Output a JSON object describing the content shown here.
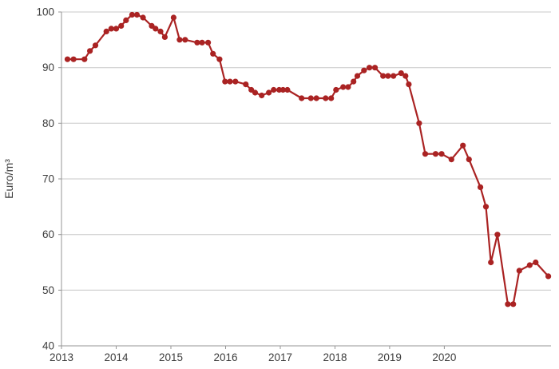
{
  "chart_data": {
    "type": "line",
    "title": "",
    "xlabel": "",
    "ylabel": "Euro/m³",
    "x_ticks": [
      2013,
      2014,
      2015,
      2016,
      2017,
      2018,
      2019,
      2020
    ],
    "x_tick_labels": [
      "2013",
      "2014",
      "2015",
      "2016",
      "2017",
      "2018",
      "2019",
      "2020"
    ],
    "y_ticks": [
      40,
      50,
      60,
      70,
      80,
      90,
      100
    ],
    "y_tick_labels": [
      "40",
      "50",
      "60",
      "70",
      "80",
      "90",
      "100"
    ],
    "xlim": [
      2013,
      2021.95
    ],
    "ylim": [
      40,
      100
    ],
    "grid": "horizontal",
    "legend": "none",
    "marker": "circle",
    "colors": {
      "line": "#aa2323",
      "marker": "#aa2323",
      "grid": "#c8c8c8",
      "axis": "#969696",
      "text": "#3d3d3d",
      "background": "#ffffff"
    },
    "series": [
      {
        "name": "Euro/m³",
        "x": [
          2013.11,
          2013.22,
          2013.42,
          2013.52,
          2013.62,
          2013.82,
          2013.91,
          2014.0,
          2014.09,
          2014.18,
          2014.29,
          2014.38,
          2014.49,
          2014.65,
          2014.72,
          2014.81,
          2014.89,
          2015.05,
          2015.16,
          2015.26,
          2015.48,
          2015.57,
          2015.68,
          2015.77,
          2015.89,
          2015.99,
          2016.08,
          2016.18,
          2016.37,
          2016.47,
          2016.54,
          2016.66,
          2016.79,
          2016.88,
          2016.98,
          2017.05,
          2017.13,
          2017.39,
          2017.56,
          2017.66,
          2017.83,
          2017.93,
          2018.02,
          2018.15,
          2018.24,
          2018.34,
          2018.41,
          2018.53,
          2018.63,
          2018.73,
          2018.88,
          2018.97,
          2019.07,
          2019.21,
          2019.29,
          2019.35,
          2019.54,
          2019.65,
          2019.84,
          2019.95,
          2020.13,
          2020.34,
          2020.45,
          2020.66,
          2020.76,
          2020.85,
          2020.97,
          2021.16,
          2021.26,
          2021.37,
          2021.56,
          2021.67,
          2021.9
        ],
        "y": [
          91.5,
          91.5,
          91.5,
          93,
          94,
          96.5,
          97,
          97,
          97.5,
          98.5,
          99.5,
          99.5,
          99,
          97.5,
          97,
          96.5,
          95.5,
          99,
          95,
          95,
          94.5,
          94.5,
          94.5,
          92.5,
          91.5,
          87.5,
          87.5,
          87.5,
          87,
          86,
          85.5,
          85,
          85.5,
          86,
          86,
          86,
          86,
          84.5,
          84.5,
          84.5,
          84.5,
          84.5,
          86,
          86.5,
          86.5,
          87.5,
          88.5,
          89.5,
          90,
          90,
          88.5,
          88.5,
          88.5,
          89,
          88.5,
          87,
          80,
          74.5,
          74.5,
          74.5,
          73.5,
          76,
          73.5,
          68.5,
          65,
          55,
          60,
          47.5,
          47.5,
          53.5,
          54.5,
          55,
          52.5
        ]
      }
    ]
  }
}
